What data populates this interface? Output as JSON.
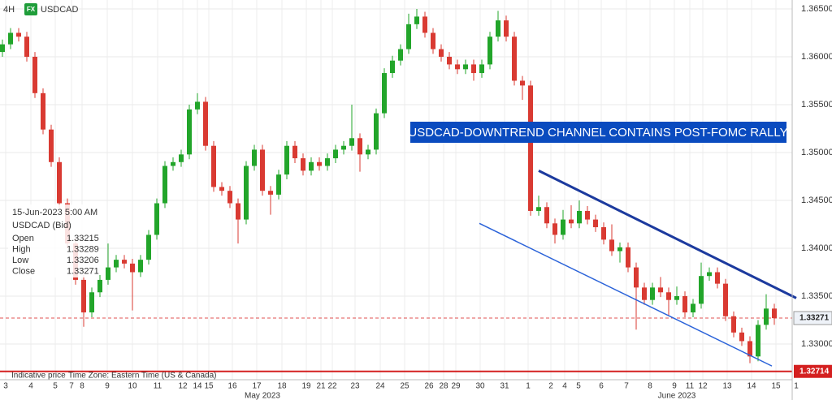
{
  "chart_data": {
    "type": "candlestick",
    "timeframe": "4H",
    "badge": "FX",
    "symbol": "USDCAD",
    "annotation": "USDCAD-DOWNTREND CHANNEL CONTAINS POST-FOMC RALLY",
    "info": {
      "date": "15-Jun-2023 5:00 AM",
      "title": "USDCAD (Bid)",
      "rows": [
        {
          "label": "Open",
          "value": 1.33215
        },
        {
          "label": "High",
          "value": 1.33289
        },
        {
          "label": "Low",
          "value": 1.33206
        },
        {
          "label": "Close",
          "value": 1.33271
        }
      ]
    },
    "footer": [
      "Indicative price",
      "Time Zone: Eastern Time (US & Canada)"
    ],
    "up_color": "#22a52a",
    "down_color": "#d93a32",
    "open": [
      1.3605,
      1.3613,
      1.3625,
      1.3621,
      1.36,
      1.3562,
      1.3524,
      1.349,
      1.3447,
      1.3405,
      1.3367,
      1.3333,
      1.3354,
      1.3367,
      1.338,
      1.3388,
      1.3384,
      1.3375,
      1.3388,
      1.3414,
      1.3447,
      1.3486,
      1.349,
      1.3498,
      1.3545,
      1.3553,
      1.3507,
      1.3464,
      1.346,
      1.3447,
      1.343,
      1.3486,
      1.3503,
      1.346,
      1.3456,
      1.3477,
      1.3507,
      1.3494,
      1.3481,
      1.349,
      1.3486,
      1.3494,
      1.3503,
      1.3507,
      1.3515,
      1.3498,
      1.3503,
      1.3541,
      1.3583,
      1.3596,
      1.3608,
      1.3634,
      1.3642,
      1.3625,
      1.3608,
      1.36,
      1.3592,
      1.3587,
      1.3592,
      1.3583,
      1.3592,
      1.3621,
      1.3638,
      1.3621,
      1.3575,
      1.357,
      1.3439,
      1.3443,
      1.3426,
      1.3414,
      1.343,
      1.3426,
      1.3439,
      1.343,
      1.3422,
      1.3409,
      1.3397,
      1.3401,
      1.338,
      1.3359,
      1.3346,
      1.3359,
      1.3354,
      1.3346,
      1.335,
      1.3333,
      1.3342,
      1.3371,
      1.3375,
      1.3363,
      1.3329,
      1.3312,
      1.3303,
      1.3287,
      1.332,
      1.3337
    ],
    "high": [
      1.3618,
      1.363,
      1.363,
      1.3626,
      1.3605,
      1.3567,
      1.3529,
      1.3495,
      1.3452,
      1.341,
      1.3372,
      1.3359,
      1.3372,
      1.3405,
      1.3393,
      1.3393,
      1.3389,
      1.3393,
      1.3419,
      1.3452,
      1.3491,
      1.3495,
      1.3503,
      1.355,
      1.3562,
      1.3558,
      1.3512,
      1.3469,
      1.3465,
      1.3452,
      1.3491,
      1.3508,
      1.3508,
      1.3465,
      1.3482,
      1.3512,
      1.3512,
      1.3499,
      1.3495,
      1.3495,
      1.3499,
      1.3508,
      1.3512,
      1.355,
      1.352,
      1.3508,
      1.3546,
      1.3588,
      1.3601,
      1.3613,
      1.3645,
      1.365,
      1.3647,
      1.363,
      1.3613,
      1.3605,
      1.3597,
      1.3597,
      1.3597,
      1.3597,
      1.3626,
      1.3648,
      1.3643,
      1.3626,
      1.358,
      1.3575,
      1.3455,
      1.3448,
      1.3431,
      1.344,
      1.3445,
      1.345,
      1.3444,
      1.3435,
      1.3427,
      1.3425,
      1.3406,
      1.3406,
      1.3385,
      1.3364,
      1.3364,
      1.337,
      1.3359,
      1.336,
      1.3355,
      1.3347,
      1.3385,
      1.338,
      1.338,
      1.3368,
      1.3334,
      1.3317,
      1.3308,
      1.3325,
      1.3352,
      1.3342
    ],
    "low": [
      1.36,
      1.3608,
      1.3616,
      1.3595,
      1.3557,
      1.3519,
      1.3485,
      1.3442,
      1.34,
      1.3362,
      1.3318,
      1.3328,
      1.3349,
      1.3362,
      1.3375,
      1.3379,
      1.3335,
      1.337,
      1.3383,
      1.3409,
      1.3442,
      1.3481,
      1.3485,
      1.3493,
      1.354,
      1.3502,
      1.3459,
      1.3455,
      1.3442,
      1.3405,
      1.3425,
      1.3481,
      1.3455,
      1.3435,
      1.3451,
      1.3472,
      1.3489,
      1.3476,
      1.3476,
      1.3481,
      1.3481,
      1.3489,
      1.3498,
      1.3502,
      1.348,
      1.3493,
      1.3498,
      1.3536,
      1.3578,
      1.3591,
      1.3603,
      1.3629,
      1.362,
      1.3603,
      1.3595,
      1.3587,
      1.3582,
      1.3582,
      1.3575,
      1.3578,
      1.3587,
      1.3616,
      1.3616,
      1.357,
      1.3555,
      1.3434,
      1.3434,
      1.3421,
      1.3405,
      1.3409,
      1.3421,
      1.3421,
      1.3425,
      1.3417,
      1.3404,
      1.3392,
      1.3385,
      1.3375,
      1.3315,
      1.3341,
      1.3341,
      1.3349,
      1.333,
      1.3341,
      1.3328,
      1.3328,
      1.3337,
      1.3366,
      1.3358,
      1.3324,
      1.3307,
      1.3298,
      1.328,
      1.3282,
      1.3315,
      1.332
    ],
    "close": [
      1.3613,
      1.3625,
      1.3621,
      1.36,
      1.3562,
      1.3524,
      1.349,
      1.3447,
      1.3405,
      1.3367,
      1.3333,
      1.3354,
      1.3367,
      1.338,
      1.3388,
      1.3384,
      1.3375,
      1.3388,
      1.3414,
      1.3447,
      1.3486,
      1.349,
      1.3498,
      1.3545,
      1.3553,
      1.3507,
      1.3464,
      1.346,
      1.3447,
      1.343,
      1.3486,
      1.3503,
      1.346,
      1.3456,
      1.3477,
      1.3507,
      1.3494,
      1.3481,
      1.349,
      1.3486,
      1.3494,
      1.3503,
      1.3507,
      1.3515,
      1.3498,
      1.3503,
      1.3541,
      1.3583,
      1.3596,
      1.3608,
      1.3634,
      1.3642,
      1.3625,
      1.3608,
      1.36,
      1.3592,
      1.3587,
      1.3592,
      1.3583,
      1.3592,
      1.3621,
      1.3638,
      1.3621,
      1.3575,
      1.357,
      1.3439,
      1.3443,
      1.3426,
      1.3414,
      1.343,
      1.3426,
      1.3439,
      1.343,
      1.3422,
      1.3409,
      1.3397,
      1.3401,
      1.338,
      1.3359,
      1.3346,
      1.3359,
      1.3354,
      1.3346,
      1.335,
      1.3333,
      1.3342,
      1.3371,
      1.3375,
      1.3363,
      1.3329,
      1.3312,
      1.3303,
      1.3287,
      1.332,
      1.3337,
      1.3327
    ],
    "trendlines": [
      {
        "color": "#1c3a9e",
        "x": [
          66,
          97.7
        ],
        "y": [
          1.3481,
          1.3348
        ]
      },
      {
        "color": "#2b63d9",
        "x": [
          58.7,
          94.7
        ],
        "y": [
          1.3426,
          1.3277
        ]
      }
    ],
    "price_lines": [
      {
        "value": 1.33271,
        "color": "#e05050",
        "style": "dashed"
      },
      {
        "value": 1.32714,
        "color": "#d42020",
        "style": "solid"
      }
    ],
    "ylim": [
      1.32627,
      1.36593
    ],
    "yticks": [
      {
        "value": 1.365,
        "label": "1.36500"
      },
      {
        "value": 1.36,
        "label": "1.36000"
      },
      {
        "value": 1.355,
        "label": "1.35500"
      },
      {
        "value": 1.35,
        "label": "1.35000"
      },
      {
        "value": 1.345,
        "label": "1.34500"
      },
      {
        "value": 1.34,
        "label": "1.34000"
      },
      {
        "value": 1.335,
        "label": "1.33500"
      },
      {
        "value": 1.33,
        "label": "1.33000"
      }
    ],
    "x_labels": [
      "3",
      "4",
      "5",
      "7",
      "8",
      "9",
      "10",
      "11",
      "12",
      "14",
      "15",
      "16",
      "17",
      "18",
      "19",
      "21",
      "22",
      "23",
      "24",
      "25",
      "26",
      "28",
      "29",
      "30",
      "31",
      "1",
      "2",
      "4",
      "5",
      "6",
      "7",
      "8",
      "9",
      "11",
      "12",
      "13",
      "14",
      "15",
      "1"
    ],
    "months": [
      "May 2023",
      "June 2023"
    ],
    "grid": true
  }
}
